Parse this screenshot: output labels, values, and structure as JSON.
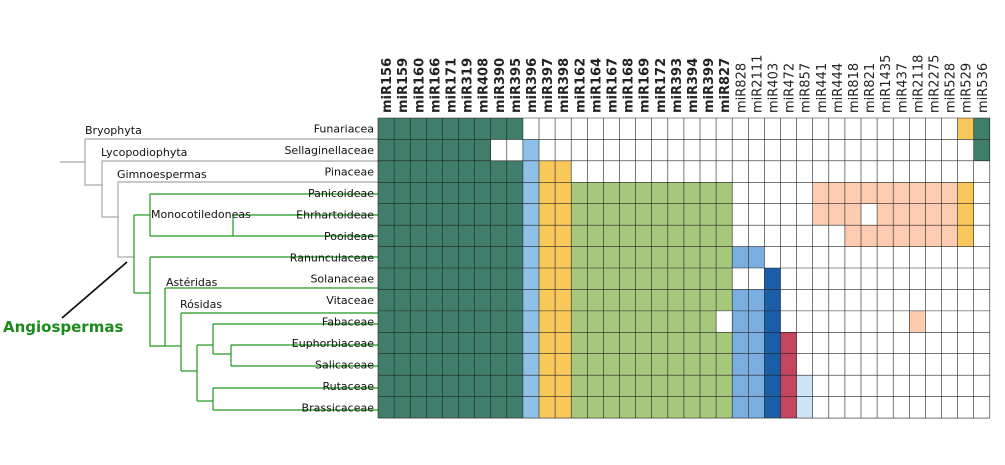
{
  "figure": {
    "mirnas": [
      "miR156",
      "miR159",
      "miR160",
      "miR166",
      "miR171",
      "miR319",
      "miR408",
      "miR390",
      "miR395",
      "miR396",
      "miR397",
      "miR398",
      "miR162",
      "miR164",
      "miR167",
      "miR168",
      "miR169",
      "miR172",
      "miR393",
      "miR394",
      "miR399",
      "miR827",
      "miR828",
      "miR2111",
      "miR403",
      "miR472",
      "miR857",
      "miR441",
      "miR444",
      "miR818",
      "miR821",
      "miR1435",
      "miR437",
      "miR2118",
      "miR2275",
      "miR528",
      "miR529",
      "miR536"
    ],
    "bold_mirna_count": 22,
    "families": [
      "Funariacea",
      "Sellaginellaceae",
      "Pinaceae",
      "Panicoideae",
      "Ehrhartoideae",
      "Pooideae",
      "Ranunculaceae",
      "Solanaceae",
      "Vitaceae",
      "Fabaceae",
      "Euphorbiaceae",
      "Salicaceae",
      "Rutaceae",
      "Brassicaceae"
    ],
    "clades": {
      "bryophyta": "Bryophyta",
      "lycopodiophyta": "Lycopodiophyta",
      "gimnoespermas": "Gimnoespermas",
      "monocotiledoneas": "Monocotiledoneas",
      "asteridas": "Astéridas",
      "rosidas": "Rósidas",
      "angiospermas": "Angiospermas"
    },
    "colors": {
      "D": "#3f7e6a",
      "L": "#8ec1ea",
      "Y": "#f9c75a",
      "G": "#a6c87c",
      "M": "#7aaee1",
      "N": "#1a5ea8",
      "R": "#c5455f",
      "P": "#cfe3f7",
      "S": "#fccbb0",
      "W": "#ffffff",
      "tree_gray": "#a8a8a8",
      "tree_green": "#1e991e"
    },
    "matrix": [
      "DDDDDDDDDWWWWWWWWWWWWWWWWWWWWWWWWWWWYD",
      "DDDDDDDWWLWWWWWWWWWWWWWWWWWWWWWWWWWWWD",
      "DDDDDDDDDLYYWWWWWWWWWWWWWWWWWWWWWWWWWW",
      "DDDDDDDDDLYYGGGGGGGGGGWWWWWSSSSSSSSSYW",
      "DDDDDDDDDLYYGGGGGGGGGGWWWWWSSSWSSSSSYW",
      "DDDDDDDDDLYYGGGGGGGGGGWWWWWWWSSSSSSSYW",
      "DDDDDDDDDLYYGGGGGGGGGGMMWWWWWWWWWWWWWW",
      "DDDDDDDDDLYYGGGGGGGGGGWWNWWWWWWWWWWWWW",
      "DDDDDDDDDLYYGGGGGGGGGGMMNWWWWWWWWWWWWW",
      "DDDDDDDDDLYYGGGGGGGGGWMMNWWWWWWWWSWWWW",
      "DDDDDDDDDLYYGGGGGGGGGGMMNRWWWWWWWWWWWW",
      "DDDDDDDDDLYYGGGGGGGGGGMMNRWWWWWWWWWWWW",
      "DDDDDDDDDLYYGGGGGGGGGGMMNRPWWWWWWWWWWW",
      "DDDDDDDDDLYYGGGGGGGGGGMMNRPWWWWWWWWWWW"
    ]
  }
}
